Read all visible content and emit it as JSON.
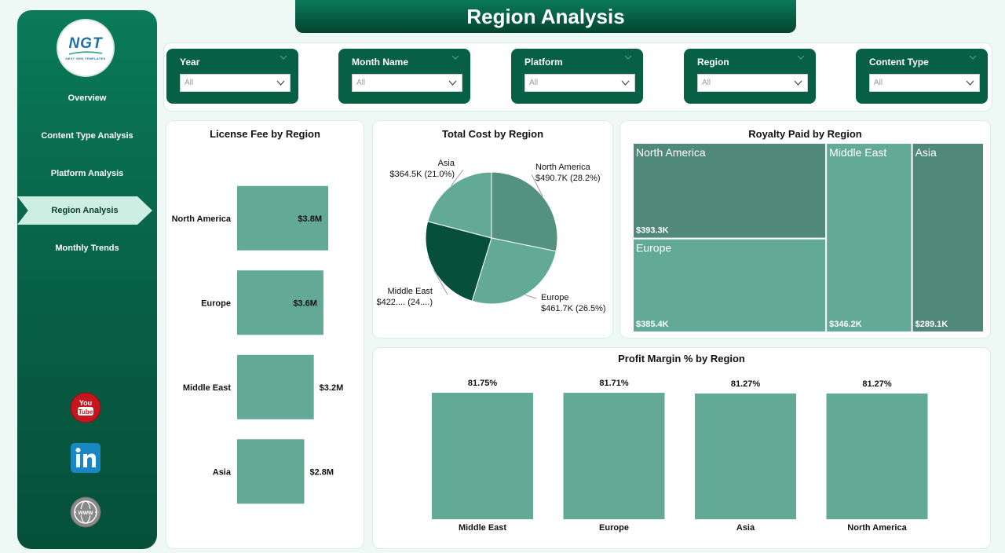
{
  "page": {
    "title": "Region Analysis"
  },
  "logo": {
    "text": "NGT",
    "subtext": "NEXT GEN TEMPLATES"
  },
  "sidebar": {
    "items": [
      {
        "label": "Overview",
        "active": false
      },
      {
        "label": "Content Type Analysis",
        "active": false
      },
      {
        "label": "Platform Analysis",
        "active": false
      },
      {
        "label": "Region Analysis",
        "active": true
      },
      {
        "label": "Monthly Trends",
        "active": false
      }
    ],
    "social": [
      {
        "icon": "youtube-icon",
        "text": "You Tube"
      },
      {
        "icon": "linkedin-icon",
        "text": "in"
      },
      {
        "icon": "globe-icon",
        "text": "www"
      }
    ]
  },
  "filters": [
    {
      "label": "Year",
      "value": "All"
    },
    {
      "label": "Month Name",
      "value": "All"
    },
    {
      "label": "Platform",
      "value": "All"
    },
    {
      "label": "Region",
      "value": "All"
    },
    {
      "label": "Content Type",
      "value": "All"
    }
  ],
  "colors": {
    "brand": "#075f44",
    "bar": "#62aa96",
    "pie": [
      "#54917f",
      "#62aa96",
      "#054f3b",
      "#62aa96"
    ],
    "treemap": [
      "#50897a",
      "#62aa96",
      "#62aa96",
      "#50897a"
    ]
  },
  "chart_data": [
    {
      "type": "bar",
      "orientation": "horizontal",
      "title": "License Fee by Region",
      "categories": [
        "North America",
        "Europe",
        "Middle East",
        "Asia"
      ],
      "values": [
        3.8,
        3.6,
        3.2,
        2.8
      ],
      "data_labels": [
        "$3.8M",
        "$3.6M",
        "$3.2M",
        "$2.8M"
      ],
      "xlim": [
        0,
        3.8
      ]
    },
    {
      "type": "pie",
      "title": "Total Cost by Region",
      "slices": [
        {
          "name": "North America",
          "value": 490.7,
          "label": "$490.7K (28.2%)"
        },
        {
          "name": "Europe",
          "value": 461.7,
          "label": "$461.7K (26.5%)"
        },
        {
          "name": "Middle East",
          "value": 422.0,
          "label": "$422.... (24....)"
        },
        {
          "name": "Asia",
          "value": 364.5,
          "label": "$364.5K (21.0%)"
        }
      ]
    },
    {
      "type": "treemap",
      "title": "Royalty Paid by Region",
      "items": [
        {
          "name": "North America",
          "value": 393.3,
          "label": "$393.3K"
        },
        {
          "name": "Europe",
          "value": 385.4,
          "label": "$385.4K"
        },
        {
          "name": "Middle East",
          "value": 346.2,
          "label": "$346.2K"
        },
        {
          "name": "Asia",
          "value": 289.1,
          "label": "$289.1K"
        }
      ]
    },
    {
      "type": "bar",
      "orientation": "vertical",
      "title": "Profit Margin % by Region",
      "categories": [
        "Middle East",
        "Europe",
        "Asia",
        "North America"
      ],
      "values": [
        81.75,
        81.71,
        81.27,
        81.27
      ],
      "data_labels": [
        "81.75%",
        "81.71%",
        "81.27%",
        "81.27%"
      ],
      "ylim": [
        0,
        81.75
      ]
    }
  ]
}
